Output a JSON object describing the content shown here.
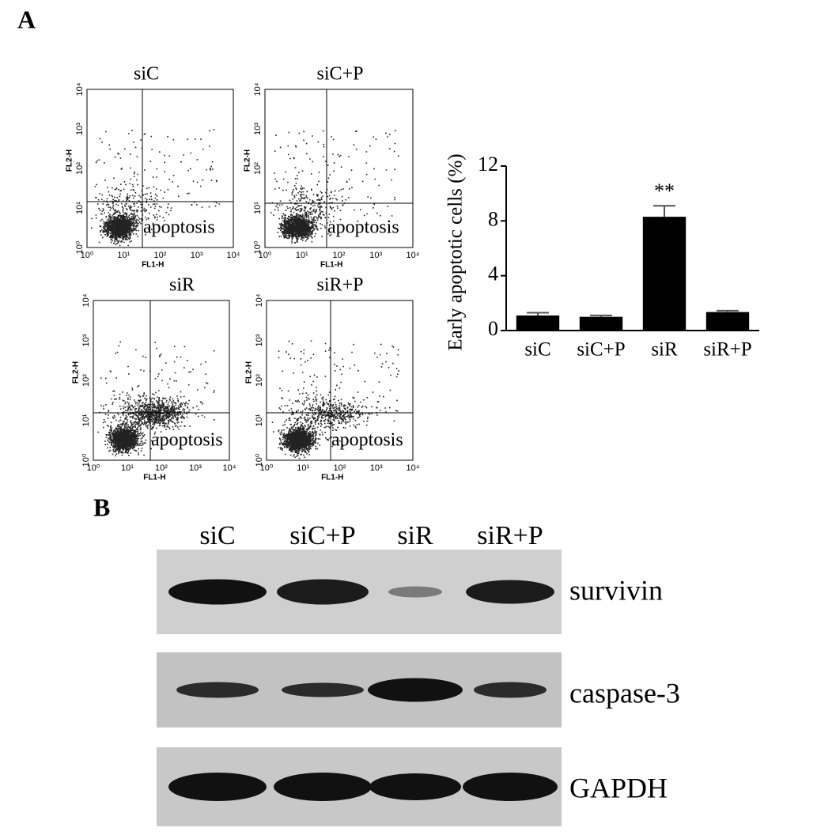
{
  "panel_labels": {
    "a": "A",
    "b": "B"
  },
  "flow_axis_ticks": [
    "10⁰",
    "10¹",
    "10²",
    "10³",
    "10⁴"
  ],
  "flow_plots": [
    {
      "title": "siC",
      "x_label": "FL1-H",
      "y_label": "FL2-H",
      "region_label": "apoptosis"
    },
    {
      "title": "siC+P",
      "x_label": "FL1-H",
      "y_label": "FL2-H",
      "region_label": "apoptosis"
    },
    {
      "title": "siR",
      "x_label": "FL1-H",
      "y_label": "FL2-H",
      "region_label": "apoptosis"
    },
    {
      "title": "siR+P",
      "x_label": "FL1-H",
      "y_label": "FL2-H",
      "region_label": "apoptosis"
    }
  ],
  "chart_data": {
    "type": "bar",
    "ylabel": "Early apoptotic cells (%)",
    "categories": [
      "siC",
      "siC+P",
      "siR",
      "siR+P"
    ],
    "values": [
      1.1,
      1.0,
      8.3,
      1.35
    ],
    "errors": [
      0.2,
      0.1,
      0.8,
      0.1
    ],
    "color": "#000000",
    "ylim": [
      0,
      12
    ],
    "yticks": [
      0,
      4,
      8,
      12
    ],
    "annotations": [
      {
        "category": "siR",
        "text": "**"
      }
    ]
  },
  "blot": {
    "lanes": [
      "siC",
      "siC+P",
      "siR",
      "siR+P"
    ],
    "rows": [
      "survivin",
      "caspase-3",
      "GAPDH"
    ]
  }
}
